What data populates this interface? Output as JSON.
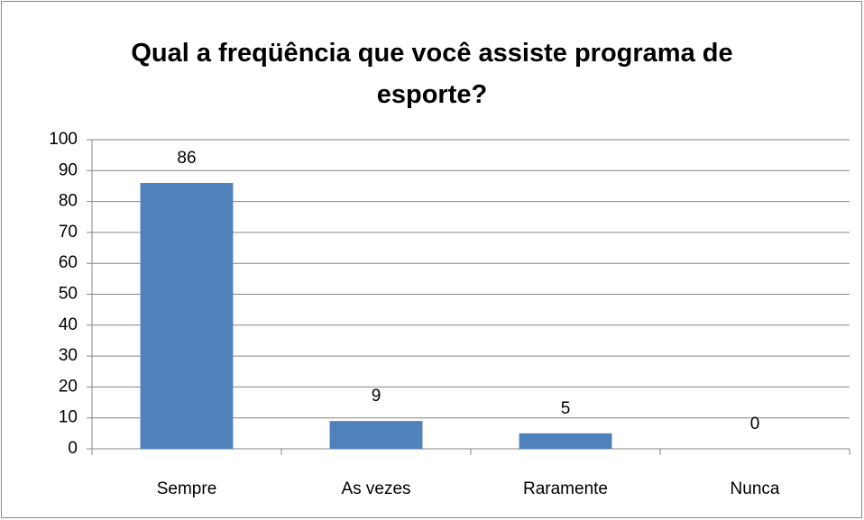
{
  "chart_data": {
    "type": "bar",
    "title": "Qual a freqüência que você assiste programa de esporte?",
    "categories": [
      "Sempre",
      "As vezes",
      "Raramente",
      "Nunca"
    ],
    "values": [
      86,
      9,
      5,
      0
    ],
    "color": "#4f81bd",
    "ylim": [
      0,
      100
    ],
    "yticks": [
      0,
      10,
      20,
      30,
      40,
      50,
      60,
      70,
      80,
      90,
      100
    ],
    "grid": true
  }
}
